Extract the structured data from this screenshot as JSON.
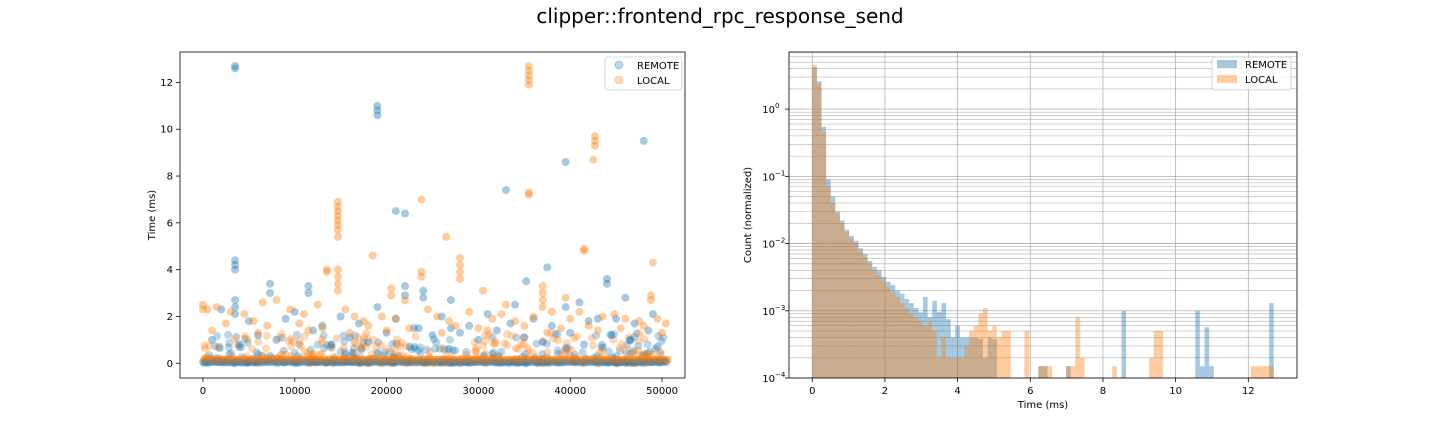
{
  "figure": {
    "suptitle": "clipper::frontend_rpc_response_send"
  },
  "colors": {
    "remote": "#1f77b4",
    "local": "#ff7f0e"
  },
  "chart_data": [
    {
      "type": "scatter",
      "xlabel": "",
      "ylabel": "Time (ms)",
      "xlim": [
        -2500,
        52500
      ],
      "ylim": [
        -0.63,
        13.3
      ],
      "xticks": [
        0,
        10000,
        20000,
        30000,
        40000,
        50000
      ],
      "xtick_labels": [
        "0",
        "10000",
        "20000",
        "30000",
        "40000",
        "50000"
      ],
      "yticks": [
        0,
        2,
        4,
        6,
        8,
        10,
        12
      ],
      "ytick_labels": [
        "0",
        "2",
        "4",
        "6",
        "8",
        "10",
        "12"
      ],
      "grid": false,
      "legend": {
        "loc": "upper right",
        "entries": [
          "REMOTE",
          "LOCAL"
        ]
      },
      "alpha": 0.3,
      "series": [
        {
          "name": "REMOTE",
          "color": "#1f77b4",
          "points": [
            [
              3500,
              12.7
            ],
            [
              3500,
              12.6
            ],
            [
              19000,
              11.0
            ],
            [
              19000,
              10.8
            ],
            [
              19000,
              10.6
            ],
            [
              39500,
              8.6
            ],
            [
              48000,
              9.5
            ],
            [
              33000,
              7.4
            ],
            [
              21000,
              6.5
            ],
            [
              22000,
              6.4
            ],
            [
              3500,
              4.4
            ],
            [
              3500,
              4.2
            ],
            [
              3500,
              4.0
            ],
            [
              37500,
              4.1
            ],
            [
              35200,
              3.5
            ],
            [
              44000,
              3.6
            ],
            [
              44000,
              3.4
            ],
            [
              7300,
              3.4
            ],
            [
              7300,
              3.0
            ],
            [
              11500,
              3.3
            ],
            [
              11500,
              3.0
            ],
            [
              22000,
              3.3
            ],
            [
              22000,
              2.9
            ],
            [
              24000,
              3.1
            ],
            [
              24000,
              2.8
            ],
            [
              27000,
              2.7
            ],
            [
              46000,
              2.8
            ],
            [
              3500,
              2.7
            ],
            [
              3500,
              2.4
            ],
            [
              3500,
              2.1
            ],
            [
              2000,
              2.3
            ],
            [
              19000,
              2.4
            ],
            [
              34000,
              2.5
            ],
            [
              39500,
              2.4
            ],
            [
              41000,
              2.6
            ],
            [
              10000,
              2.2
            ],
            [
              15000,
              2.0
            ],
            [
              26000,
              2.0
            ],
            [
              31000,
              2.1
            ],
            [
              36000,
              1.9
            ],
            [
              43000,
              1.9
            ],
            [
              49000,
              2.1
            ],
            [
              5000,
              1.8
            ],
            [
              9000,
              1.9
            ],
            [
              13000,
              1.6
            ],
            [
              17000,
              1.7
            ],
            [
              21000,
              1.9
            ],
            [
              23500,
              1.5
            ],
            [
              29000,
              1.6
            ],
            [
              33500,
              1.7
            ],
            [
              38000,
              1.6
            ],
            [
              42000,
              1.8
            ],
            [
              47000,
              1.7
            ],
            [
              23000,
              1.5
            ],
            [
              27000,
              1.5
            ],
            [
              45000,
              1.9
            ],
            [
              12000,
              1.4
            ],
            [
              20000,
              1.3
            ],
            [
              28000,
              1.3
            ],
            [
              32000,
              1.4
            ],
            [
              40000,
              1.3
            ],
            [
              48500,
              1.4
            ],
            [
              6000,
              1.2
            ],
            [
              16000,
              1.1
            ],
            [
              25000,
              1.2
            ],
            [
              35000,
              1.1
            ],
            [
              44500,
              1.2
            ],
            [
              1000,
              1.0
            ],
            [
              8000,
              1.0
            ],
            [
              18000,
              0.9
            ],
            [
              30000,
              1.0
            ],
            [
              37000,
              0.9
            ],
            [
              46500,
              1.0
            ],
            [
              4000,
              0.8
            ],
            [
              14000,
              0.8
            ],
            [
              22500,
              0.7
            ],
            [
              41500,
              0.8
            ],
            [
              49500,
              0.7
            ]
          ]
        },
        {
          "name": "LOCAL",
          "color": "#ff7f0e",
          "points": [
            [
              35500,
              12.7
            ],
            [
              35500,
              12.5
            ],
            [
              35500,
              12.3
            ],
            [
              35500,
              12.1
            ],
            [
              35500,
              11.9
            ],
            [
              42700,
              9.7
            ],
            [
              42700,
              9.5
            ],
            [
              42700,
              9.3
            ],
            [
              42500,
              8.7
            ],
            [
              35500,
              7.3
            ],
            [
              35500,
              7.2
            ],
            [
              23800,
              7.0
            ],
            [
              14700,
              6.9
            ],
            [
              14700,
              6.7
            ],
            [
              14700,
              6.5
            ],
            [
              14700,
              6.3
            ],
            [
              14700,
              6.1
            ],
            [
              14700,
              5.9
            ],
            [
              14700,
              5.7
            ],
            [
              14700,
              5.4
            ],
            [
              26500,
              5.4
            ],
            [
              41500,
              4.9
            ],
            [
              41500,
              4.8
            ],
            [
              18500,
              4.6
            ],
            [
              49000,
              4.3
            ],
            [
              13500,
              4.0
            ],
            [
              13500,
              3.9
            ],
            [
              14700,
              4.0
            ],
            [
              14700,
              3.7
            ],
            [
              14700,
              3.4
            ],
            [
              14700,
              3.1
            ],
            [
              23800,
              3.9
            ],
            [
              23800,
              3.7
            ],
            [
              28000,
              4.5
            ],
            [
              28000,
              4.2
            ],
            [
              28000,
              3.9
            ],
            [
              28000,
              3.6
            ],
            [
              30500,
              3.1
            ],
            [
              37000,
              3.3
            ],
            [
              37000,
              3.0
            ],
            [
              37000,
              2.7
            ],
            [
              37000,
              2.4
            ],
            [
              20500,
              3.2
            ],
            [
              20500,
              2.9
            ],
            [
              22000,
              2.7
            ],
            [
              39500,
              2.8
            ],
            [
              48800,
              2.9
            ],
            [
              48800,
              2.7
            ],
            [
              33000,
              2.5
            ],
            [
              50400,
              1.7
            ],
            [
              0,
              2.5
            ],
            [
              0,
              2.3
            ],
            [
              500,
              2.3
            ],
            [
              1500,
              2.4
            ],
            [
              3000,
              2.2
            ],
            [
              4500,
              2.1
            ],
            [
              6500,
              2.6
            ],
            [
              8000,
              2.7
            ],
            [
              9500,
              2.3
            ],
            [
              11000,
              2.1
            ],
            [
              12500,
              2.5
            ],
            [
              15500,
              2.3
            ],
            [
              16500,
              2.0
            ],
            [
              17500,
              1.8
            ],
            [
              19500,
              2.0
            ],
            [
              21000,
              1.9
            ],
            [
              24500,
              2.3
            ],
            [
              25500,
              2.0
            ],
            [
              26800,
              1.8
            ],
            [
              29000,
              2.2
            ],
            [
              31500,
              1.9
            ],
            [
              32500,
              2.1
            ],
            [
              34000,
              1.8
            ],
            [
              36000,
              2.0
            ],
            [
              38000,
              2.2
            ],
            [
              40000,
              1.9
            ],
            [
              41000,
              2.2
            ],
            [
              43500,
              2.0
            ],
            [
              44800,
              2.1
            ],
            [
              46000,
              1.9
            ],
            [
              47500,
              1.8
            ],
            [
              49500,
              1.9
            ],
            [
              2500,
              1.7
            ],
            [
              5500,
              1.8
            ],
            [
              7000,
              1.6
            ],
            [
              10500,
              1.7
            ],
            [
              13000,
              1.5
            ],
            [
              18000,
              1.6
            ],
            [
              22500,
              1.5
            ],
            [
              27500,
              1.6
            ],
            [
              30000,
              1.5
            ],
            [
              35000,
              1.6
            ],
            [
              39000,
              1.5
            ],
            [
              42000,
              1.6
            ],
            [
              45500,
              1.5
            ],
            [
              48000,
              1.6
            ],
            [
              1000,
              1.4
            ],
            [
              6000,
              1.3
            ],
            [
              11500,
              1.4
            ],
            [
              16000,
              1.3
            ],
            [
              20000,
              1.4
            ],
            [
              26000,
              1.3
            ],
            [
              31000,
              1.4
            ],
            [
              37500,
              1.3
            ],
            [
              43000,
              1.4
            ],
            [
              50000,
              1.3
            ]
          ]
        }
      ]
    },
    {
      "type": "histogram",
      "xlabel": "Time (ms)",
      "ylabel": "Count (normalized)",
      "xlim": [
        -0.64,
        13.34
      ],
      "ylim_log10": [
        -4.0,
        0.85
      ],
      "yscale": "log",
      "xticks": [
        0,
        2,
        4,
        6,
        8,
        10,
        12
      ],
      "xtick_labels": [
        "0",
        "2",
        "4",
        "6",
        "8",
        "10",
        "12"
      ],
      "ytick_exponents": [
        -4,
        -3,
        -2,
        -1,
        0
      ],
      "ytick_labels": [
        "10",
        "10",
        "10",
        "10",
        "10"
      ],
      "ytick_superscripts": [
        "−4",
        "−3",
        "−2",
        "−1",
        "0"
      ],
      "grid": true,
      "legend": {
        "loc": "upper right",
        "entries": [
          "REMOTE",
          "LOCAL"
        ]
      },
      "alpha": 0.4,
      "bin_width": 0.127,
      "series": [
        {
          "name": "REMOTE",
          "color": "#1f77b4",
          "values": [
            4.2,
            2.6,
            0.55,
            0.09,
            0.05,
            0.03,
            0.022,
            0.016,
            0.013,
            0.011,
            0.0085,
            0.007,
            0.0055,
            0.0045,
            0.004,
            0.0032,
            0.0027,
            0.0024,
            0.002,
            0.0018,
            0.0015,
            0.0013,
            0.0011,
            0.00095,
            0.0016,
            0.0008,
            0.0014,
            0.00095,
            0.0013,
            0.00075,
            0.0004,
            0.0006,
            0.0004,
            0.0004,
            0.0004,
            0.0004,
            0.00038,
            0.0002,
            0.0004,
            0.00038,
            0,
            0,
            0,
            0,
            0,
            0,
            0,
            0,
            0,
            0.00015,
            0.00015,
            0,
            0,
            0,
            0,
            0.00015,
            0,
            0,
            0,
            0,
            0,
            0,
            0,
            0,
            0,
            0,
            0,
            0.001,
            0,
            0,
            0,
            0,
            0,
            0,
            0,
            0,
            0,
            0,
            0,
            0,
            0,
            0,
            0,
            0.001,
            0.00015,
            0.00057,
            0.00015,
            0,
            0,
            0,
            0,
            0,
            0,
            0,
            0,
            0,
            0,
            0,
            0,
            0.0013
          ]
        },
        {
          "name": "LOCAL",
          "color": "#ff7f0e",
          "values": [
            4.5,
            2.4,
            0.45,
            0.07,
            0.04,
            0.028,
            0.02,
            0.015,
            0.012,
            0.01,
            0.0075,
            0.0062,
            0.005,
            0.004,
            0.0034,
            0.0028,
            0.0023,
            0.0019,
            0.0016,
            0.0013,
            0.0011,
            0.0009,
            0.0008,
            0.0007,
            0.0006,
            0.0007,
            0.0005,
            0.0002,
            0.0004,
            0.0002,
            0.0002,
            0.0002,
            0.0002,
            0.0003,
            0.0005,
            0.0006,
            0.0009,
            0.0011,
            0.0005,
            0.0006,
            0.0004,
            0.0005,
            0.0005,
            0,
            0,
            0,
            0.0005,
            0,
            0,
            0.00015,
            0.00015,
            0.00015,
            0,
            0,
            0,
            0.00015,
            0.00015,
            0.0008,
            0.0002,
            0,
            0,
            0,
            0,
            0,
            0,
            0.00015,
            0,
            0,
            0,
            0,
            0,
            0,
            0,
            0.0002,
            0.0005,
            0.0005,
            0,
            0,
            0,
            0,
            0,
            0,
            0,
            0,
            0,
            0,
            0,
            0,
            0,
            0,
            0,
            0,
            0,
            0,
            0,
            0.00015,
            0.00015,
            0.00015,
            0.00015,
            0.00015
          ]
        }
      ]
    }
  ]
}
